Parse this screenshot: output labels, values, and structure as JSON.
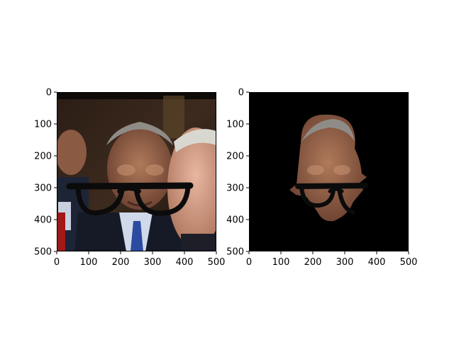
{
  "chart_data": [
    {
      "type": "image",
      "title": "",
      "xlabel": "",
      "ylabel": "",
      "xlim": [
        0,
        500
      ],
      "ylim": [
        500,
        0
      ],
      "xticks": [
        0,
        100,
        200,
        300,
        400,
        500
      ],
      "yticks": [
        0,
        100,
        200,
        300,
        400,
        500
      ],
      "content": "photo of men in suits with overlaid black eyeglasses",
      "overlay_shape": "eyeglasses",
      "overlay_color": "#0b0b0b"
    },
    {
      "type": "image",
      "title": "",
      "xlabel": "",
      "ylabel": "",
      "xlim": [
        0,
        500
      ],
      "ylim": [
        500,
        0
      ],
      "xticks": [
        0,
        100,
        200,
        300,
        400,
        500
      ],
      "yticks": [
        0,
        100,
        200,
        300,
        400,
        500
      ],
      "content": "segmented face mask with eyeglasses on black background",
      "overlay_shape": "eyeglasses",
      "overlay_color": "#0b0b0b",
      "background_color": "#000000"
    }
  ]
}
